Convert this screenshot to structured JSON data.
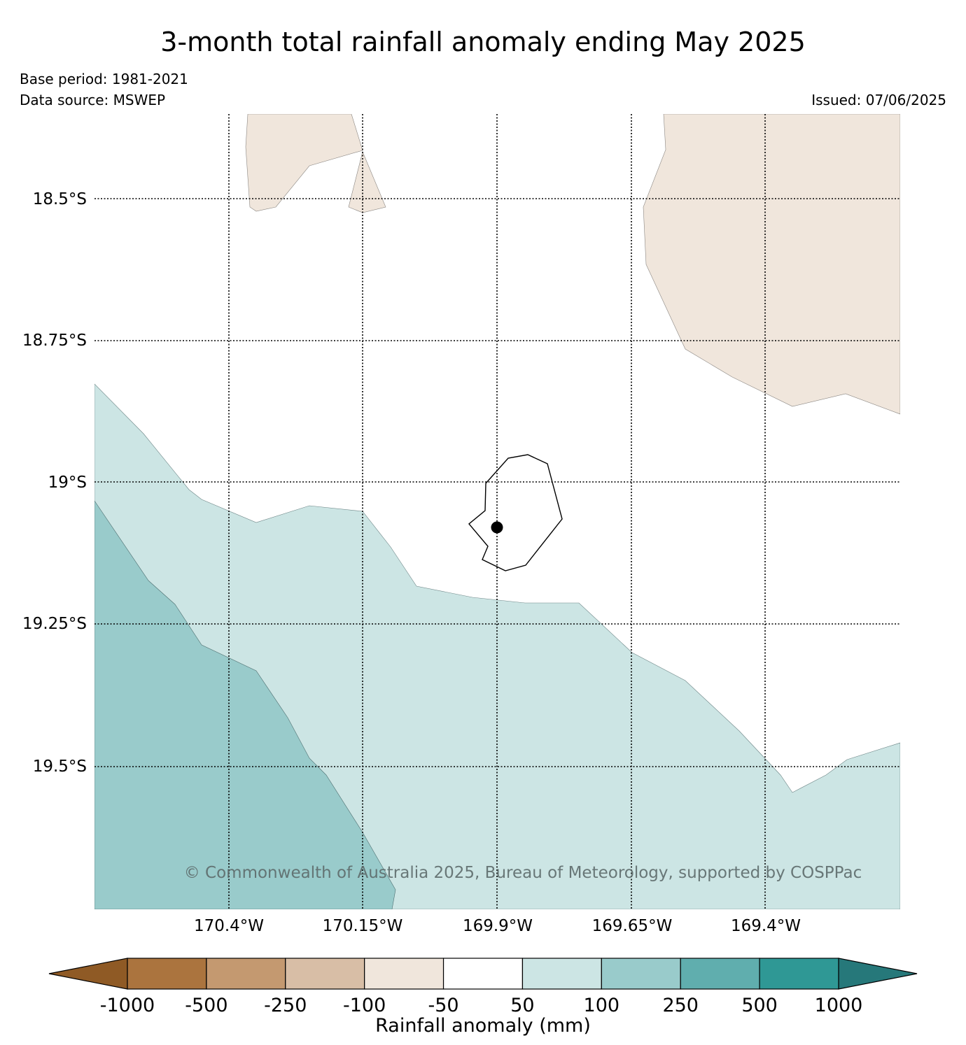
{
  "title": "3-month total rainfall anomaly ending May 2025",
  "base_period": "Base period: 1981-2021",
  "data_source": "Data source: MSWEP",
  "issued": "Issued: 07/06/2025",
  "copyright": "© Commonwealth of Australia 2025, Bureau of Meteorology, supported by COSPPac",
  "map": {
    "lat_labels": [
      "18.5°S",
      "18.75°S",
      "19°S",
      "19.25°S",
      "19.5°S"
    ],
    "lon_labels": [
      "170.4°W",
      "170.15°W",
      "169.9°W",
      "169.65°W",
      "169.4°W"
    ],
    "site_marker": "black-dot",
    "land_outline": "island-outline",
    "anomaly_regions": [
      {
        "class": "-100 to -50",
        "color": "#f0e6dc"
      },
      {
        "class": "-50 to 50",
        "color": "#ffffff"
      },
      {
        "class": "50 to 100",
        "color": "#cce5e4"
      },
      {
        "class": "100 to 250",
        "color": "#99cbcb"
      }
    ]
  },
  "colorbar": {
    "label": "Rainfall anomaly (mm)",
    "ticks": [
      "-1000",
      "-500",
      "-250",
      "-100",
      "-50",
      "50",
      "100",
      "250",
      "500",
      "1000"
    ],
    "under_color": "#8f5a25",
    "over_color": "#26787a",
    "colors": [
      "#ab743e",
      "#c49970",
      "#d8bea6",
      "#f0e6dc",
      "#ffffff",
      "#cce5e4",
      "#99cbcb",
      "#60aeae",
      "#2f9895"
    ]
  }
}
